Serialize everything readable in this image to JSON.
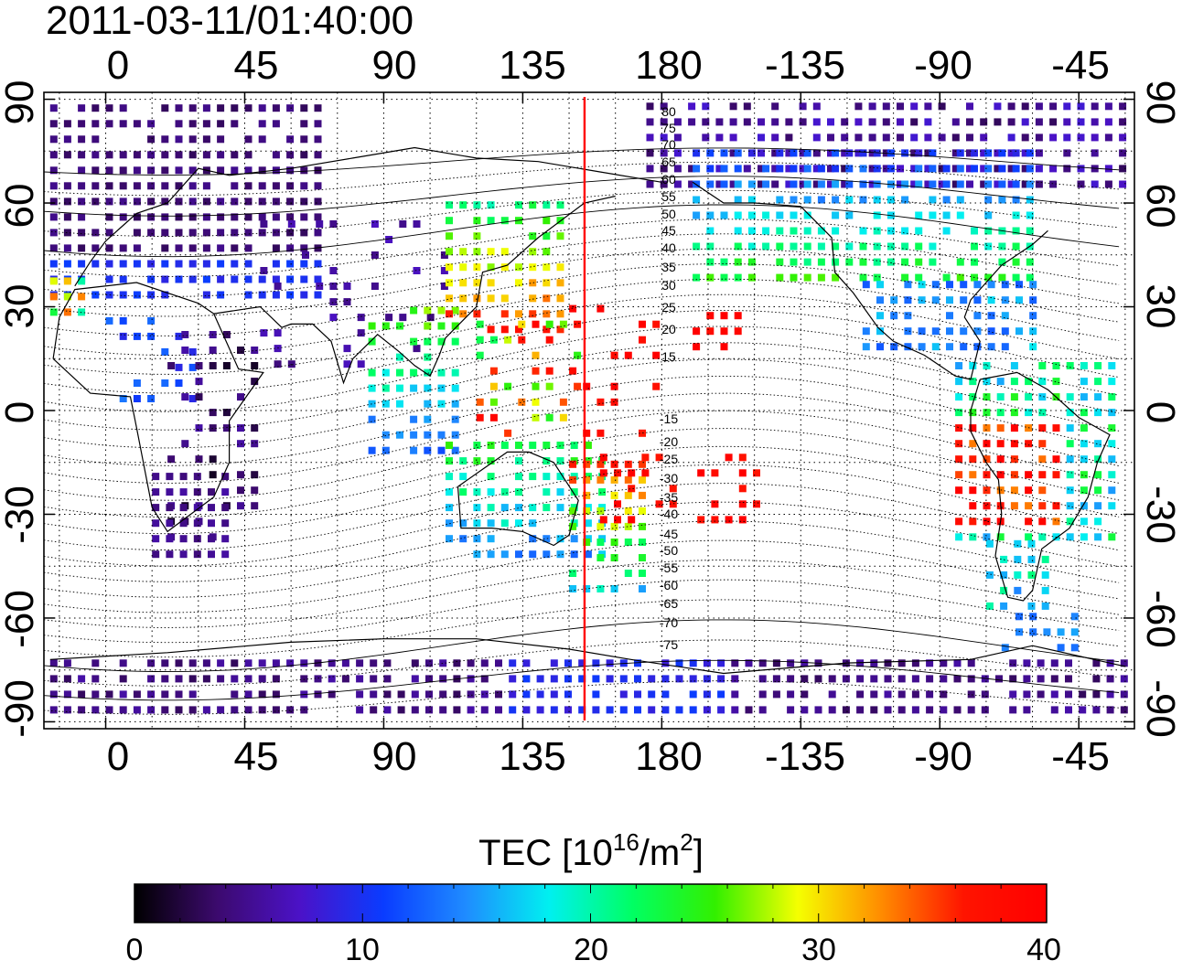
{
  "timestamp": "2011-03-11/01:40:00",
  "map": {
    "x_tick_labels_top": [
      "0",
      "45",
      "90",
      "135",
      "180",
      "-135",
      "-90",
      "-45"
    ],
    "x_tick_labels_bottom": [
      "0",
      "45",
      "90",
      "135",
      "180",
      "-135",
      "-90",
      "-45"
    ],
    "y_tick_labels_left": [
      "90",
      "60",
      "30",
      "0",
      "-30",
      "-60",
      "-90"
    ],
    "y_tick_labels_right": [
      "90",
      "60",
      "30",
      "0",
      "-30",
      "-60",
      "-90"
    ],
    "longitude_ticks_deg": [
      0,
      45,
      90,
      135,
      180,
      225,
      270,
      315
    ],
    "latitude_ticks_deg": [
      90,
      60,
      30,
      0,
      -30,
      -60,
      -90
    ],
    "lon_range_deg": [
      -20,
      333
    ],
    "lat_range_deg": [
      -92,
      92
    ],
    "marker_longitude_deg": 155,
    "marker_color": "#ff0000",
    "contour_labels": [
      "80",
      "75",
      "70",
      "65",
      "60",
      "55",
      "50",
      "45",
      "40",
      "35",
      "30",
      "25",
      "20",
      "15",
      "-15",
      "-20",
      "-25",
      "-30",
      "-35",
      "-40",
      "-45",
      "-50",
      "-55",
      "-60",
      "-65",
      "-70",
      "-75"
    ]
  },
  "colorbar": {
    "title_prefix": "TEC  [10",
    "title_sup1": "16",
    "title_mid": "/m",
    "title_sup2": "2",
    "title_suffix": "]",
    "tick_labels": [
      "0",
      "10",
      "20",
      "30",
      "40"
    ],
    "tick_values": [
      0,
      10,
      20,
      30,
      40
    ],
    "range": [
      0,
      40
    ],
    "colors": [
      "#000000",
      "#3c0a6e",
      "#4b12c8",
      "#0a3cff",
      "#1f8cff",
      "#00f0f0",
      "#00ff64",
      "#32f000",
      "#f5ff00",
      "#ff8c00",
      "#ff1400",
      "#ff0000"
    ]
  }
}
